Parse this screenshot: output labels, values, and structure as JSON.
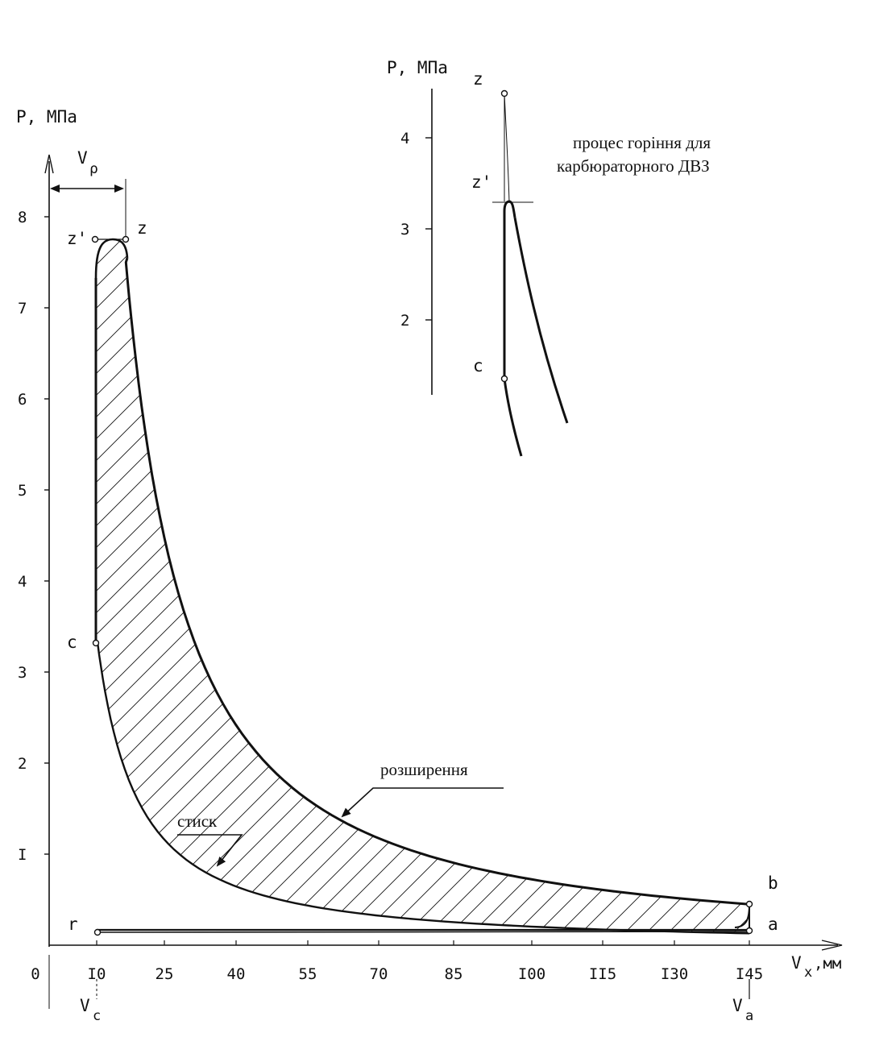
{
  "colors": {
    "ink": "#111111",
    "paper": "#ffffff"
  },
  "main_chart": {
    "y_axis_label": "P, МПа",
    "x_axis_label_main": "V",
    "x_axis_label_sub": "x",
    "x_axis_label_unit": ",мм",
    "y_ticks": [
      "I",
      "2",
      "3",
      "4",
      "5",
      "6",
      "7",
      "8"
    ],
    "x_ticks": [
      "0",
      "I0",
      "25",
      "40",
      "55",
      "70",
      "85",
      "I00",
      "II5",
      "I30",
      "I45"
    ],
    "vp_label_main": "V",
    "vp_label_sub": "ρ",
    "vc_label_main": "V",
    "vc_label_sub": "c",
    "va_label_main": "V",
    "va_label_sub": "a",
    "points": {
      "z_prime": "z'",
      "z": "z",
      "c": "c",
      "r": "r",
      "a": "a",
      "b": "b"
    },
    "annotation_expansion": "розширення",
    "annotation_compression": "стиск"
  },
  "inset_chart": {
    "y_axis_label": "P, МПа",
    "y_ticks": [
      "2",
      "3",
      "4"
    ],
    "points": {
      "z": "z",
      "z_prime": "z'",
      "c": "c"
    },
    "caption_line1": "процес горіння для",
    "caption_line2": "карбюраторного ДВЗ"
  }
}
